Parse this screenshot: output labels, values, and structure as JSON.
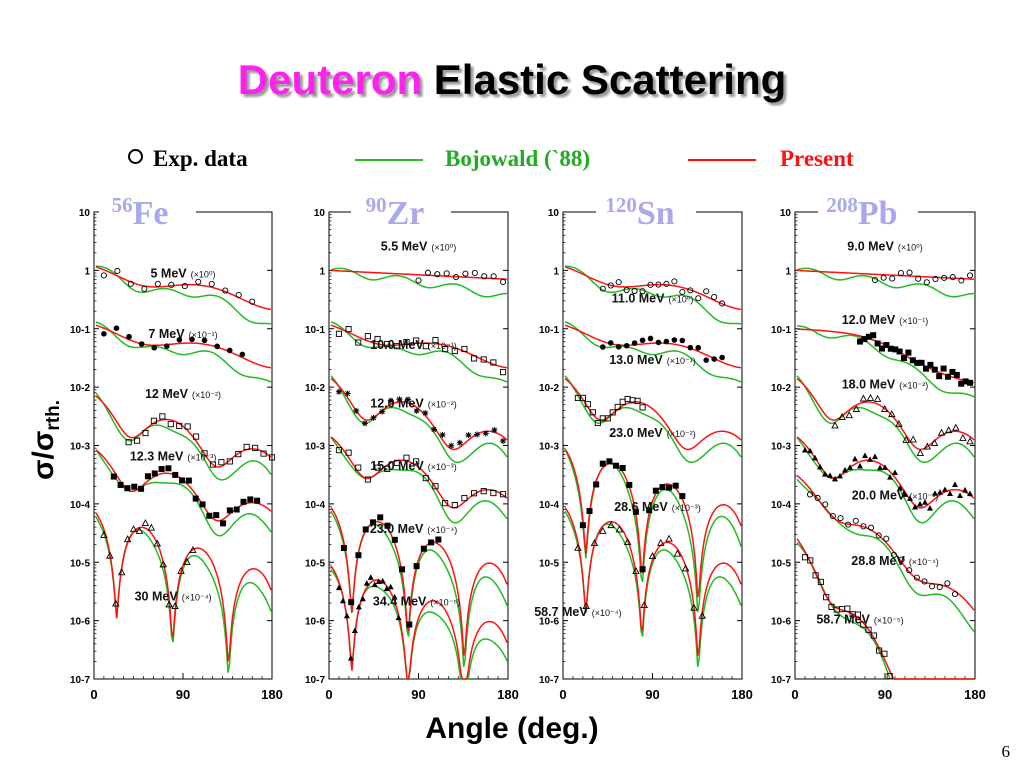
{
  "title": {
    "word1": "Deuteron",
    "word2": "Elastic Scattering"
  },
  "legend": {
    "exp": "Exp. data",
    "bojowald": "Bojowald (`88)",
    "present": "Present"
  },
  "ylabel": {
    "main": "σ/σ",
    "sub": "rth."
  },
  "xlabel": "Angle (deg.)",
  "page_number": "6",
  "colors": {
    "title_accent": "#ff22ee",
    "bojowald": "#22bb22",
    "present": "#ff1111",
    "nucleus_label": "#a8a8ec"
  },
  "chart_data": [
    {
      "type": "scatter",
      "nucleus": {
        "mass": "56",
        "symbol": "Fe"
      },
      "xlim": [
        0,
        180
      ],
      "ylim": [
        1e-07,
        10
      ],
      "ylog": true,
      "xticks": [
        0,
        90,
        180
      ],
      "yticks": [
        "10",
        "1",
        "10-1",
        "10-2",
        "10-3",
        "10-4",
        "10-5",
        "10-6",
        "10-7"
      ],
      "series": [
        {
          "energy": "5 MeV",
          "scale": "(×10⁰)",
          "label_at": [
            90,
            0.75
          ],
          "norm": 1,
          "curve": "smooth",
          "marker": "o",
          "data_range": [
            10,
            160
          ],
          "points": 12
        },
        {
          "energy": "7 MeV",
          "scale": "(×10⁻¹)",
          "label_at": [
            90,
            0.07
          ],
          "norm": 0.1,
          "curve": "smooth",
          "marker": "dot",
          "data_range": [
            10,
            150
          ],
          "points": 12
        },
        {
          "energy": "12 MeV",
          "scale": "(×10⁻²)",
          "label_at": [
            90,
            0.0065
          ],
          "norm": 0.005,
          "curve": "osc",
          "marker": "sq",
          "data_range": [
            35,
            180
          ],
          "points": 18
        },
        {
          "energy": "12.3 MeV",
          "scale": "(×10⁻³)",
          "label_at": [
            80,
            0.00055
          ],
          "norm": 0.0006,
          "curve": "osc",
          "marker": "fsq",
          "data_range": [
            20,
            165
          ],
          "points": 22
        },
        {
          "energy": "30 MeV",
          "scale": "(×10⁻⁴)",
          "label_at": [
            80,
            2.2e-06
          ],
          "norm": 8e-05,
          "curve": "deep",
          "marker": "tri",
          "data_range": [
            10,
            100
          ],
          "points": 16
        }
      ]
    },
    {
      "type": "scatter",
      "nucleus": {
        "mass": "90",
        "symbol": "Zr"
      },
      "xlim": [
        0,
        180
      ],
      "ylim": [
        1e-07,
        10
      ],
      "ylog": true,
      "xticks": [
        0,
        90,
        180
      ],
      "yticks": [
        "10",
        "1",
        "10-1",
        "10-2",
        "10-3",
        "10-4",
        "10-5",
        "10-6",
        "10-7"
      ],
      "series": [
        {
          "energy": "5.5 MeV",
          "scale": "(×10⁰)",
          "label_at": [
            90,
            2.2
          ],
          "norm": 1,
          "curve": "flat",
          "marker": "o",
          "data_range": [
            90,
            175
          ],
          "points": 10
        },
        {
          "energy": "10.0 MeV",
          "scale": "(×10⁻¹)",
          "label_at": [
            85,
            0.045
          ],
          "norm": 0.1,
          "curve": "smooth",
          "marker": "sq",
          "data_range": [
            10,
            175
          ],
          "points": 18
        },
        {
          "energy": "12.0 MeV",
          "scale": "(×10⁻²)",
          "label_at": [
            85,
            0.0045
          ],
          "norm": 0.01,
          "curve": "osc",
          "marker": "star",
          "data_range": [
            10,
            175
          ],
          "points": 20
        },
        {
          "energy": "15.0 MeV",
          "scale": "(×10⁻³)",
          "label_at": [
            85,
            0.00038
          ],
          "norm": 0.001,
          "curve": "osc",
          "marker": "sq",
          "data_range": [
            10,
            175
          ],
          "points": 18
        },
        {
          "energy": "23.0 MeV",
          "scale": "(×10⁻⁴)",
          "label_at": [
            85,
            3.2e-05
          ],
          "norm": 0.0001,
          "curve": "deep",
          "marker": "fsq",
          "data_range": [
            15,
            110
          ],
          "points": 14
        },
        {
          "energy": "34.4 MeV",
          "scale": "(×10⁻⁵)",
          "label_at": [
            88,
            1.8e-06
          ],
          "norm": 1e-05,
          "curve": "deep",
          "marker": "ftri",
          "data_range": [
            10,
            70
          ],
          "points": 16
        }
      ]
    },
    {
      "type": "scatter",
      "nucleus": {
        "mass": "120",
        "symbol": "Sn"
      },
      "xlim": [
        0,
        180
      ],
      "ylim": [
        1e-07,
        10
      ],
      "ylog": true,
      "xticks": [
        0,
        90,
        180
      ],
      "yticks": [
        "10",
        "1",
        "10-1",
        "10-2",
        "10-3",
        "10-4",
        "10-5",
        "10-6",
        "10-7"
      ],
      "series": [
        {
          "energy": "11.0 MeV",
          "scale": "(×10⁰)",
          "label_at": [
            90,
            0.28
          ],
          "norm": 1,
          "curve": "smooth",
          "marker": "o",
          "data_range": [
            40,
            160
          ],
          "points": 16
        },
        {
          "energy": "13.0 MeV",
          "scale": "(×10⁻¹)",
          "label_at": [
            90,
            0.025
          ],
          "norm": 0.1,
          "curve": "smooth",
          "marker": "dot",
          "data_range": [
            40,
            160
          ],
          "points": 16
        },
        {
          "energy": "23.0 MeV",
          "scale": "(×10⁻²)",
          "label_at": [
            90,
            0.0014
          ],
          "norm": 0.01,
          "curve": "osc",
          "marker": "sq",
          "data_range": [
            15,
            80
          ],
          "points": 14
        },
        {
          "energy": "28.6 MeV",
          "scale": "(×10⁻³)",
          "label_at": [
            95,
            7.5e-05
          ],
          "norm": 0.001,
          "curve": "deep",
          "marker": "fsq",
          "data_range": [
            20,
            120
          ],
          "points": 16
        },
        {
          "energy": "58.7 MeV",
          "scale": "(×10⁻⁴)",
          "label_at": [
            15,
            1.2e-06
          ],
          "norm": 0.0001,
          "curve": "deep",
          "marker": "tri",
          "data_range": [
            15,
            140
          ],
          "points": 16
        }
      ]
    },
    {
      "type": "scatter",
      "nucleus": {
        "mass": "208",
        "symbol": "Pb"
      },
      "xlim": [
        0,
        180
      ],
      "ylim": [
        1e-07,
        10
      ],
      "ylog": true,
      "xticks": [
        0,
        90,
        180
      ],
      "yticks": [
        "10",
        "1",
        "10-1",
        "10-2",
        "10-3",
        "10-4",
        "10-5",
        "10-6",
        "10-7"
      ],
      "series": [
        {
          "energy": "9.0 MeV",
          "scale": "(×10⁰)",
          "label_at": [
            90,
            2.2
          ],
          "norm": 1,
          "curve": "flat",
          "marker": "o",
          "data_range": [
            80,
            175
          ],
          "points": 12
        },
        {
          "energy": "12.0 MeV",
          "scale": "(×10⁻¹)",
          "label_at": [
            90,
            0.12
          ],
          "norm": 0.1,
          "curve": "pbdrop",
          "marker": "fsq",
          "data_range": [
            65,
            175
          ],
          "points": 26
        },
        {
          "energy": "18.0 MeV",
          "scale": "(×10⁻²)",
          "label_at": [
            90,
            0.0095
          ],
          "norm": 0.01,
          "curve": "osc",
          "marker": "tri",
          "data_range": [
            40,
            175
          ],
          "points": 20
        },
        {
          "energy": "20.0 MeV",
          "scale": "(×10⁻³)",
          "label_at": [
            100,
            0.00012
          ],
          "norm": 0.001,
          "curve": "osc",
          "marker": "ftri",
          "data_range": [
            10,
            175
          ],
          "points": 34
        },
        {
          "energy": "28.8 MeV",
          "scale": "(×10⁻⁴)",
          "label_at": [
            100,
            9e-06
          ],
          "norm": 0.00025,
          "curve": "steep",
          "marker": "o",
          "data_range": [
            15,
            160
          ],
          "points": 20
        },
        {
          "energy": "58.7 MeV",
          "scale": "(×10⁻⁵)",
          "label_at": [
            65,
            9e-07
          ],
          "norm": 2e-05,
          "curve": "vsteep",
          "marker": "sq",
          "data_range": [
            10,
            100
          ],
          "points": 18
        }
      ]
    }
  ]
}
